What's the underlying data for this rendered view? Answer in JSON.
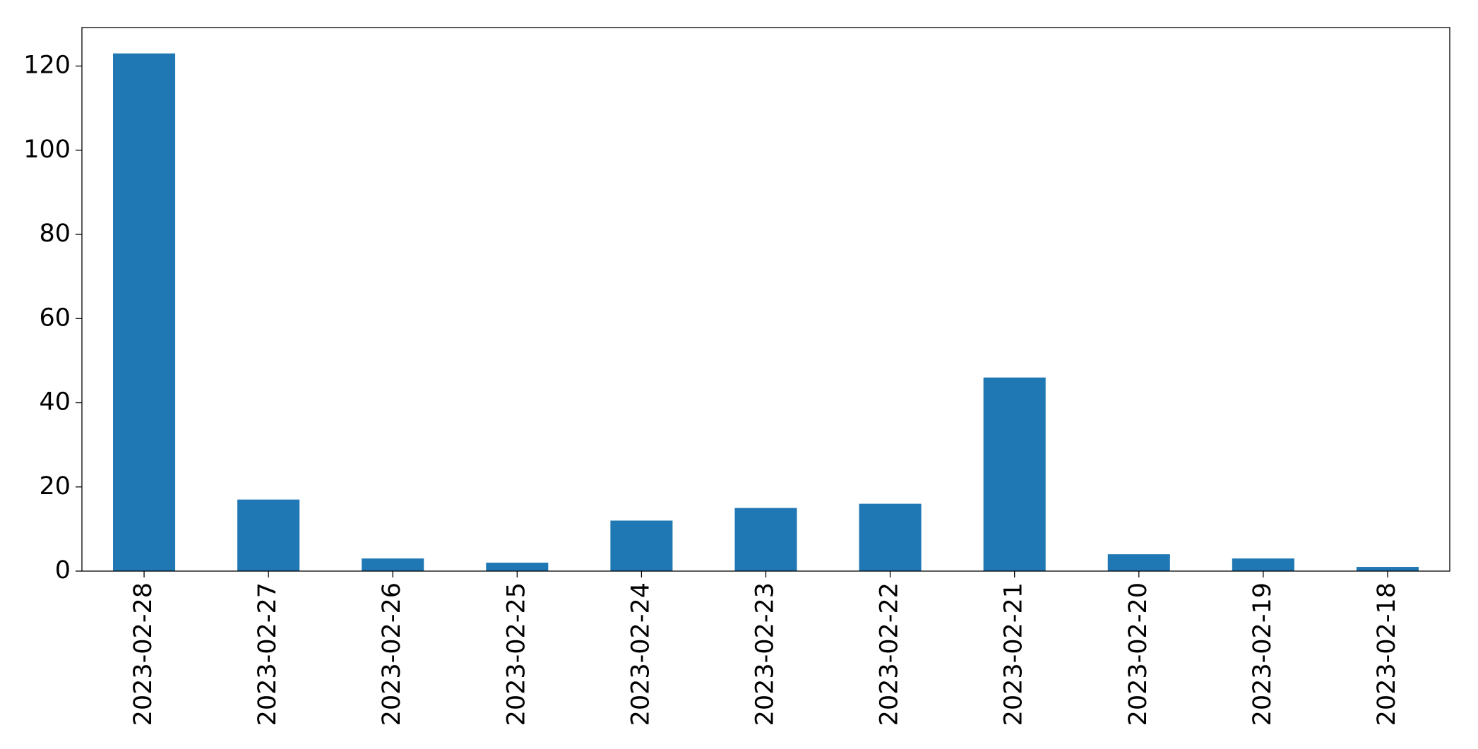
{
  "chart_data": {
    "type": "bar",
    "categories": [
      "2023-02-28",
      "2023-02-27",
      "2023-02-26",
      "2023-02-25",
      "2023-02-24",
      "2023-02-23",
      "2023-02-22",
      "2023-02-21",
      "2023-02-20",
      "2023-02-19",
      "2023-02-18"
    ],
    "values": [
      123,
      17,
      3,
      2,
      12,
      15,
      16,
      46,
      4,
      3,
      1
    ],
    "color": "#1f77b4",
    "ylim": [
      0,
      129.15
    ],
    "yticks": [
      0,
      20,
      40,
      60,
      80,
      100,
      120
    ],
    "grid": false
  }
}
